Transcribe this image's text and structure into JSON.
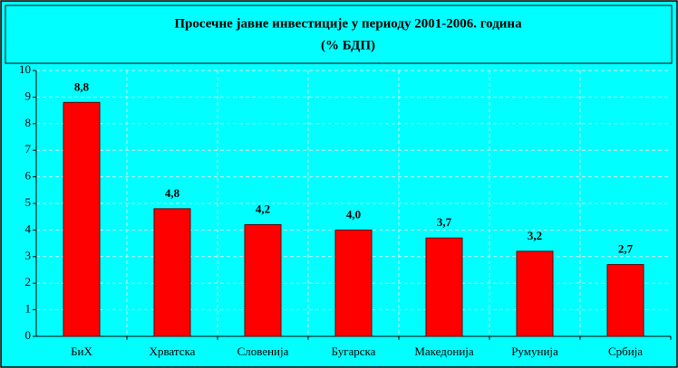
{
  "chart_data": {
    "type": "bar",
    "title": "Просечне јавне инвестиције у периоду 2001-2006. година",
    "subtitle": "(% БДП)",
    "categories": [
      "БиХ",
      "Хрватска",
      "Словенија",
      "Бугарска",
      "Македонија",
      "Румунија",
      "Србија"
    ],
    "values": [
      8.8,
      4.8,
      4.2,
      4.0,
      3.7,
      3.2,
      2.7
    ],
    "value_labels": [
      "8,8",
      "4,8",
      "4,2",
      "4,0",
      "3,7",
      "3,2",
      "2,7"
    ],
    "color": "#ff0000",
    "ylim": [
      0,
      10
    ],
    "yticks": [
      0,
      1,
      2,
      3,
      4,
      5,
      6,
      7,
      8,
      9,
      10
    ],
    "grid": true
  }
}
